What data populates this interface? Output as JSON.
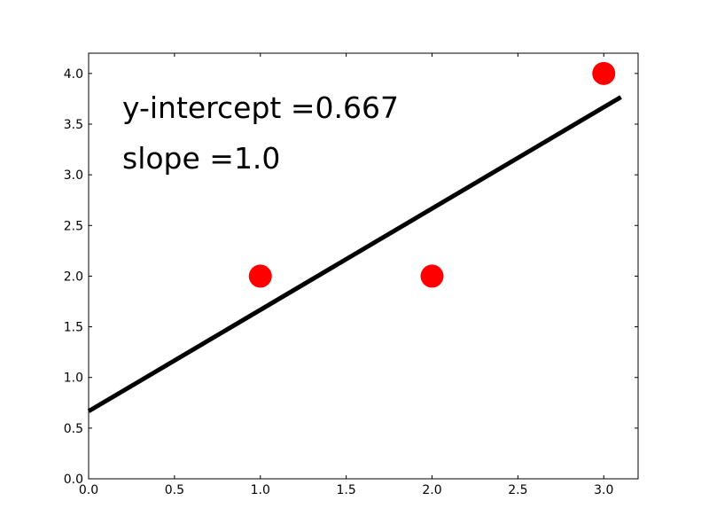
{
  "chart_data": {
    "type": "scatter",
    "title": "",
    "xlabel": "",
    "ylabel": "",
    "xlim": [
      0.0,
      3.2
    ],
    "ylim": [
      0.0,
      4.2
    ],
    "grid": false,
    "x_ticks": [
      "0.0",
      "0.5",
      "1.0",
      "1.5",
      "2.0",
      "2.5",
      "3.0"
    ],
    "y_ticks": [
      "0.0",
      "0.5",
      "1.0",
      "1.5",
      "2.0",
      "2.5",
      "3.0",
      "3.5",
      "4.0"
    ],
    "series": [
      {
        "kind": "scatter",
        "color": "#ff0000",
        "x": [
          1,
          2,
          3
        ],
        "y": [
          2,
          2,
          4
        ]
      },
      {
        "kind": "line",
        "color": "#000000",
        "x": [
          0.0,
          3.1
        ],
        "y": [
          0.667,
          3.767
        ]
      }
    ],
    "annotations": [
      {
        "text": "y-intercept =0.667"
      },
      {
        "text": "slope =1.0"
      }
    ]
  }
}
